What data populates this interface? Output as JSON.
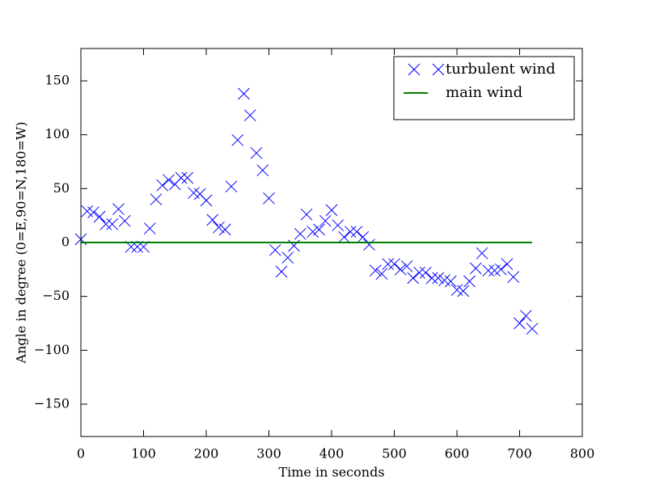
{
  "chart_data": {
    "type": "scatter",
    "xlabel": "Time in seconds",
    "ylabel": "Angle in degree (0=E,90=N,180=W)",
    "xlim": [
      0,
      800
    ],
    "ylim": [
      -180,
      180
    ],
    "xticks": [
      0,
      100,
      200,
      300,
      400,
      500,
      600,
      700,
      800
    ],
    "yticks": [
      {
        "value": -150,
        "label": "−150"
      },
      {
        "value": -100,
        "label": "−100"
      },
      {
        "value": -50,
        "label": "−50"
      },
      0,
      50,
      100,
      150
    ],
    "legend": "upper right",
    "series": [
      {
        "name": "turbulent wind",
        "color": "#0000ff",
        "mode": "markers",
        "x": [
          0,
          10,
          20,
          30,
          40,
          50,
          60,
          70,
          80,
          90,
          100,
          110,
          120,
          130,
          140,
          150,
          160,
          170,
          180,
          190,
          200,
          210,
          220,
          230,
          240,
          250,
          260,
          270,
          280,
          290,
          300,
          310,
          320,
          330,
          340,
          350,
          360,
          370,
          380,
          390,
          400,
          410,
          420,
          430,
          440,
          450,
          460,
          470,
          480,
          490,
          500,
          510,
          520,
          530,
          540,
          550,
          560,
          570,
          580,
          590,
          600,
          610,
          620,
          630,
          640,
          650,
          660,
          670,
          680,
          690,
          700,
          710,
          720
        ],
        "values": [
          3,
          29,
          28,
          24,
          17,
          17,
          31,
          20,
          -4,
          -4,
          -4,
          13,
          40,
          53,
          58,
          54,
          60,
          60,
          46,
          45,
          39,
          21,
          14,
          12,
          52,
          95,
          138,
          118,
          83,
          67,
          41,
          -7,
          -27,
          -14,
          -3,
          8,
          26,
          10,
          12,
          20,
          30,
          16,
          5,
          10,
          10,
          5,
          -2,
          -26,
          -29,
          -20,
          -20,
          -25,
          -22,
          -33,
          -28,
          -28,
          -33,
          -33,
          -35,
          -36,
          -44,
          -45,
          -36,
          -24,
          -10,
          -26,
          -26,
          -25,
          -20,
          -32,
          -75,
          -68,
          -80
        ]
      },
      {
        "name": "main wind",
        "color": "#008000",
        "mode": "line",
        "x": [
          0,
          720
        ],
        "values": [
          0,
          0
        ]
      }
    ]
  }
}
